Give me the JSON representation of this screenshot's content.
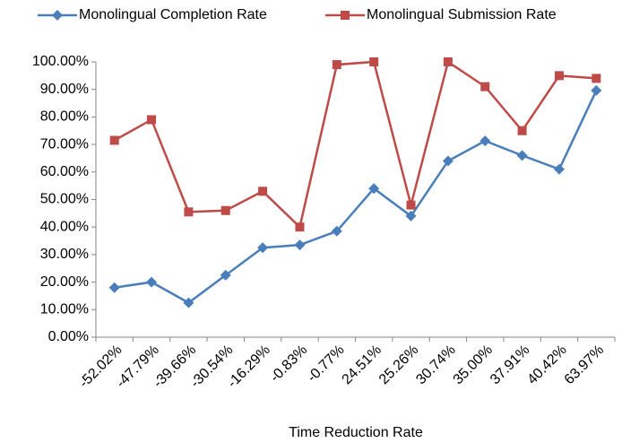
{
  "chart_data": {
    "type": "line",
    "x_label": "Time Reduction Rate",
    "categories": [
      "-52.02%",
      "-47.79%",
      "-39.66%",
      "-30.54%",
      "-16.29%",
      "-0.83%",
      "-0.77%",
      "24.51%",
      "25.26%",
      "30.74%",
      "35.00%",
      "37.91%",
      "40.42%",
      "63.97%"
    ],
    "series": [
      {
        "name": "Monolingual Completion Rate",
        "color": "#4a7ebb",
        "marker": "diamond",
        "values": [
          18,
          20,
          12.5,
          22.5,
          32.5,
          33.5,
          38.5,
          54,
          44,
          64,
          71.3,
          66,
          61,
          89.6
        ]
      },
      {
        "name": "Monolingual Submission Rate",
        "color": "#be4b48",
        "marker": "square",
        "values": [
          71.5,
          79,
          45.5,
          46,
          53,
          40,
          99,
          100,
          48,
          100,
          91,
          75,
          95,
          94
        ]
      }
    ],
    "ylim": [
      0,
      100
    ],
    "yticks": [
      {
        "value": 0,
        "label": "0.00%"
      },
      {
        "value": 10,
        "label": "10.00%"
      },
      {
        "value": 20,
        "label": "20.00%"
      },
      {
        "value": 30,
        "label": "30.00%"
      },
      {
        "value": 40,
        "label": "40.00%"
      },
      {
        "value": 50,
        "label": "50.00%"
      },
      {
        "value": 60,
        "label": "60.00%"
      },
      {
        "value": 70,
        "label": "70.00%"
      },
      {
        "value": 80,
        "label": "80.00%"
      },
      {
        "value": 90,
        "label": "90.00%"
      },
      {
        "value": 100,
        "label": "100.00%"
      }
    ],
    "grid": false,
    "legend": "top"
  }
}
